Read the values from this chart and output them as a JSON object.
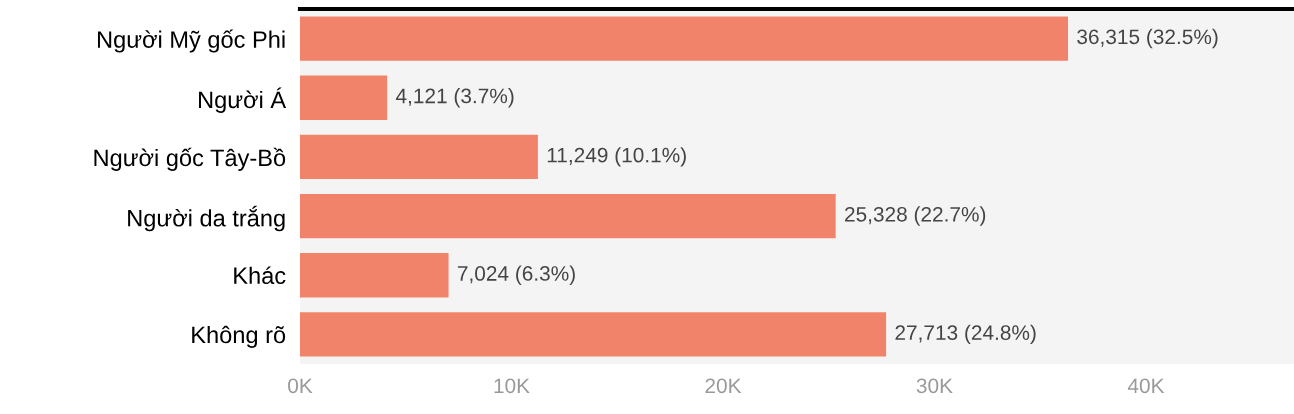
{
  "chart_data": {
    "type": "bar",
    "orientation": "horizontal",
    "categories": [
      "Người Mỹ gốc Phi",
      "Người Á",
      "Người gốc Tây-Bồ",
      "Người da trắng",
      "Khác",
      "Không rõ"
    ],
    "values": [
      36315,
      4121,
      11249,
      25328,
      7024,
      27713
    ],
    "value_labels": [
      "36,315 (32.5%)",
      "4,121 (3.7%)",
      "11,249 (10.1%)",
      "25,328 (22.7%)",
      "7,024 (6.3%)",
      "27,713 (24.8%)"
    ],
    "color": "#f2836b",
    "xlim": [
      0,
      47000
    ],
    "xticks": [
      {
        "value": 0,
        "label": "0K"
      },
      {
        "value": 10000,
        "label": "10K"
      },
      {
        "value": 20000,
        "label": "20K"
      },
      {
        "value": 30000,
        "label": "30K"
      },
      {
        "value": 40000,
        "label": "40K"
      }
    ],
    "grid": false,
    "legend": false
  }
}
